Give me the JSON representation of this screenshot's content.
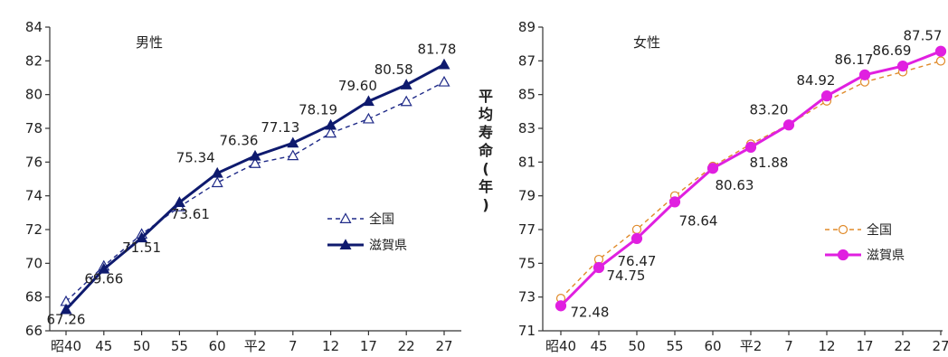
{
  "ylabel": "平均寿命(年)",
  "chart_data": [
    {
      "type": "line",
      "title": "男性",
      "categories": [
        "昭40",
        "45",
        "50",
        "55",
        "60",
        "平2",
        "7",
        "12",
        "17",
        "22",
        "27"
      ],
      "ylim": [
        66,
        84
      ],
      "yticks": [
        66,
        68,
        70,
        72,
        74,
        76,
        78,
        80,
        82,
        84
      ],
      "grid": false,
      "legend_position": "right",
      "series": [
        {
          "name": "全国",
          "color": "#1f2a88",
          "style": "dashed-open-triangle",
          "values": [
            67.74,
            69.84,
            71.73,
            73.35,
            74.78,
            75.92,
            76.38,
            77.72,
            78.56,
            79.59,
            80.75
          ]
        },
        {
          "name": "滋賀県",
          "color": "#0e1a6e",
          "style": "solid-filled-triangle",
          "values": [
            67.26,
            69.66,
            71.51,
            73.61,
            75.34,
            76.36,
            77.13,
            78.19,
            79.6,
            80.58,
            81.78
          ]
        }
      ],
      "data_labels": [
        "67.26",
        "69.66",
        "71.51",
        "73.61",
        "75.34",
        "76.36",
        "77.13",
        "78.19",
        "79.60",
        "80.58",
        "81.78"
      ]
    },
    {
      "type": "line",
      "title": "女性",
      "categories": [
        "昭40",
        "45",
        "50",
        "55",
        "60",
        "平2",
        "7",
        "12",
        "17",
        "22",
        "27"
      ],
      "ylim": [
        71,
        89
      ],
      "yticks": [
        71,
        73,
        75,
        77,
        79,
        81,
        83,
        85,
        87,
        89
      ],
      "grid": false,
      "legend_position": "right",
      "series": [
        {
          "name": "全国",
          "color": "#e08a2a",
          "style": "dashed-open-circle",
          "values": [
            72.92,
            75.23,
            77.01,
            79.0,
            80.75,
            82.07,
            83.22,
            84.62,
            85.75,
            86.35,
            86.99
          ]
        },
        {
          "name": "滋賀県",
          "color": "#e020e0",
          "style": "solid-filled-circle",
          "values": [
            72.48,
            74.75,
            76.47,
            78.64,
            80.63,
            81.88,
            83.2,
            84.92,
            86.17,
            86.69,
            87.57
          ]
        }
      ],
      "data_labels": [
        "72.48",
        "74.75",
        "76.47",
        "78.64",
        "80.63",
        "81.88",
        "83.20",
        "84.92",
        "86.17",
        "86.69",
        "87.57"
      ]
    }
  ]
}
